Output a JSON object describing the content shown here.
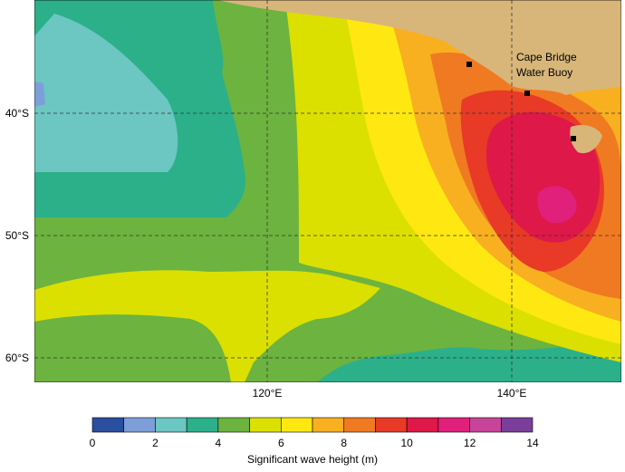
{
  "map": {
    "lat_labels": [
      "40°S",
      "50°S",
      "60°S"
    ],
    "lon_labels": [
      "120°E",
      "140°E"
    ],
    "annotation": [
      "Cape Bridge",
      "Water Buoy"
    ]
  },
  "colorbar": {
    "bins": [
      0,
      1,
      2,
      3,
      4,
      5,
      6,
      7,
      8,
      9,
      10,
      11,
      12,
      13,
      14
    ],
    "colors": [
      "#2a4f9e",
      "#7d9fd9",
      "#6cc6c1",
      "#2bb08a",
      "#6db33f",
      "#dbe000",
      "#ffe812",
      "#f8b020",
      "#f07a22",
      "#e83a26",
      "#de1848",
      "#e0207a",
      "#c8449a",
      "#7a3f9a"
    ],
    "ticks": [
      0,
      2,
      4,
      6,
      8,
      10,
      12,
      14
    ],
    "label": "Significant wave height (m)"
  }
}
